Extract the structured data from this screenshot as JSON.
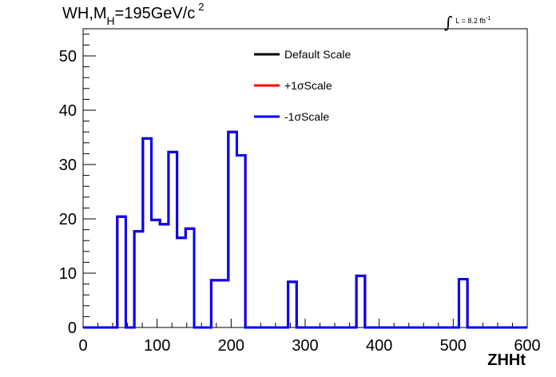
{
  "title": {
    "main": "WH,M",
    "sub": "H",
    "rest": "=195GeV/c",
    "sup": "2"
  },
  "luminosity": {
    "integral": "∫",
    "text": "L = 8.2 fb",
    "sup": "-1"
  },
  "chart_data": {
    "type": "line",
    "subtype": "histogram-step",
    "xlabel": "ZHHt",
    "ylabel": "",
    "xlim": [
      0,
      600
    ],
    "ylim": [
      0,
      55
    ],
    "x_ticks": [
      0,
      100,
      200,
      300,
      400,
      500,
      600
    ],
    "y_ticks": [
      0,
      10,
      20,
      30,
      40,
      50
    ],
    "bin_width": 11.54,
    "bins": [
      {
        "x0": 0,
        "x1": 46.2,
        "y": 0
      },
      {
        "x0": 46.2,
        "x1": 57.7,
        "y": 20.4
      },
      {
        "x0": 57.7,
        "x1": 69.2,
        "y": 0
      },
      {
        "x0": 69.2,
        "x1": 80.8,
        "y": 17.7
      },
      {
        "x0": 80.8,
        "x1": 92.3,
        "y": 34.8
      },
      {
        "x0": 92.3,
        "x1": 103.8,
        "y": 19.8
      },
      {
        "x0": 103.8,
        "x1": 115.4,
        "y": 19.0
      },
      {
        "x0": 115.4,
        "x1": 126.9,
        "y": 32.3
      },
      {
        "x0": 126.9,
        "x1": 138.5,
        "y": 16.5
      },
      {
        "x0": 138.5,
        "x1": 150.0,
        "y": 18.2
      },
      {
        "x0": 150.0,
        "x1": 173.1,
        "y": 0
      },
      {
        "x0": 173.1,
        "x1": 196.2,
        "y": 8.7
      },
      {
        "x0": 196.2,
        "x1": 207.7,
        "y": 36.0
      },
      {
        "x0": 207.7,
        "x1": 219.2,
        "y": 31.7
      },
      {
        "x0": 219.2,
        "x1": 276.9,
        "y": 0
      },
      {
        "x0": 276.9,
        "x1": 288.5,
        "y": 8.4
      },
      {
        "x0": 288.5,
        "x1": 369.2,
        "y": 0
      },
      {
        "x0": 369.2,
        "x1": 380.8,
        "y": 9.5
      },
      {
        "x0": 380.8,
        "x1": 507.7,
        "y": 0
      },
      {
        "x0": 507.7,
        "x1": 519.2,
        "y": 8.9
      },
      {
        "x0": 519.2,
        "x1": 600,
        "y": 0
      }
    ],
    "series": [
      {
        "name": "Default Scale",
        "color": "#000000"
      },
      {
        "name": "+1σScale",
        "color": "#ff0000"
      },
      {
        "name": "-1σScale",
        "color": "#0000ff"
      }
    ],
    "legend_position": "top-center",
    "grid": false
  }
}
